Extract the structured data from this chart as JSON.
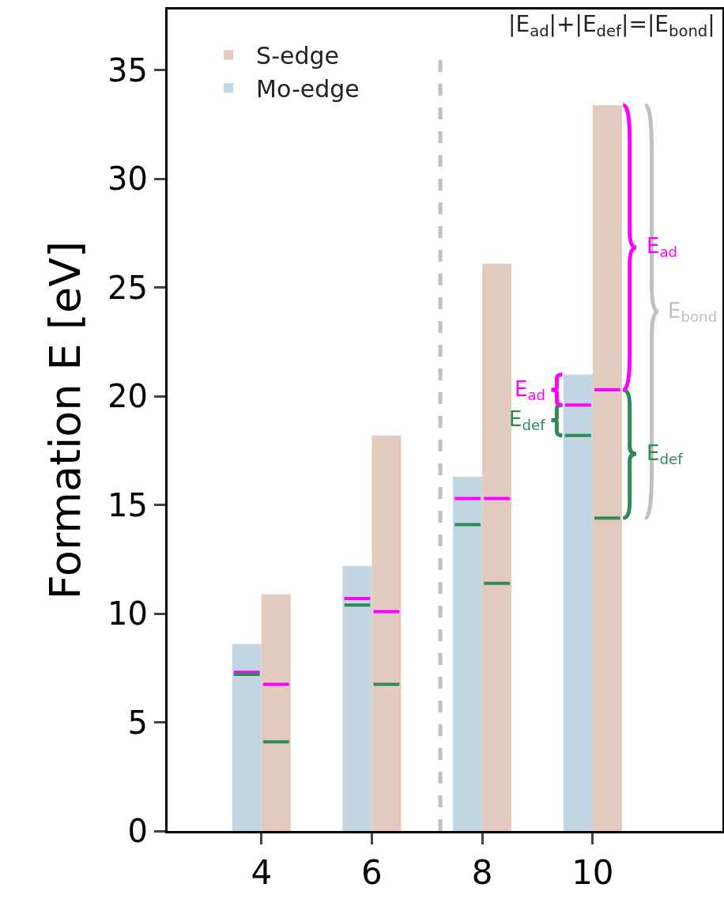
{
  "chart_data": {
    "type": "bar",
    "ylabel": "Formation E [eV]",
    "x": [
      4,
      6,
      8,
      10
    ],
    "series": [
      {
        "name": "Mo-edge",
        "color": "#c2d5e2",
        "values": [
          8.6,
          12.2,
          16.3,
          21.0
        ]
      },
      {
        "name": "S-edge",
        "color": "#e3cabe",
        "values": [
          10.9,
          18.2,
          26.1,
          33.4
        ]
      },
      {
        "type": "line",
        "color": "#ff00ff",
        "x": [
          3.5,
          3.97,
          null,
          5.5,
          5.97,
          null,
          7.5,
          7.97,
          null,
          9.5,
          9.97
        ],
        "values": [
          7.3,
          7.3,
          null,
          10.7,
          10.7,
          null,
          15.3,
          15.3,
          null,
          19.6,
          19.6
        ]
      },
      {
        "type": "line",
        "color": "#2e8b57",
        "x": [
          3.5,
          3.97,
          null,
          5.5,
          5.97,
          null,
          7.5,
          7.97,
          null,
          9.5,
          9.97
        ],
        "values": [
          7.2,
          7.2,
          null,
          10.4,
          10.4,
          null,
          14.1,
          14.1,
          null,
          18.2,
          18.2
        ]
      },
      {
        "type": "line",
        "color": "#ff00ff",
        "x": [
          4.03,
          4.5,
          null,
          6.03,
          6.5,
          null,
          8.03,
          8.5,
          null,
          10.03,
          10.5
        ],
        "values": [
          6.75,
          6.75,
          null,
          10.1,
          10.1,
          null,
          15.3,
          15.3,
          null,
          20.3,
          20.3
        ]
      },
      {
        "type": "line",
        "color": "#2e8b57",
        "x": [
          4.03,
          4.5,
          null,
          6.03,
          6.5,
          null,
          8.03,
          8.5,
          null,
          10.03,
          10.5
        ],
        "values": [
          4.1,
          4.1,
          null,
          6.75,
          6.75,
          null,
          11.4,
          11.4,
          null,
          14.4,
          14.4
        ]
      }
    ],
    "xlim": [
      2.3,
      12.35
    ],
    "xticks": [
      4,
      6,
      8,
      10
    ],
    "ylim": [
      0,
      37.8
    ],
    "yticks": [
      0,
      5,
      10,
      15,
      20,
      25,
      30,
      35
    ],
    "grid": false,
    "legend": "top left",
    "ref_lines": [
      {
        "axis": "x",
        "value": 7.24,
        "color": "#c0c0c0",
        "line_style": "dashed"
      }
    ],
    "annotations": [
      "|E$_{ad}$|+|E$_{def}$|=|E$_{bond}$|",
      "E$_{ad}$",
      "E$_{bond}$",
      "E$_{def}$",
      "E$_{ad}$",
      "E$_{def}$"
    ]
  }
}
